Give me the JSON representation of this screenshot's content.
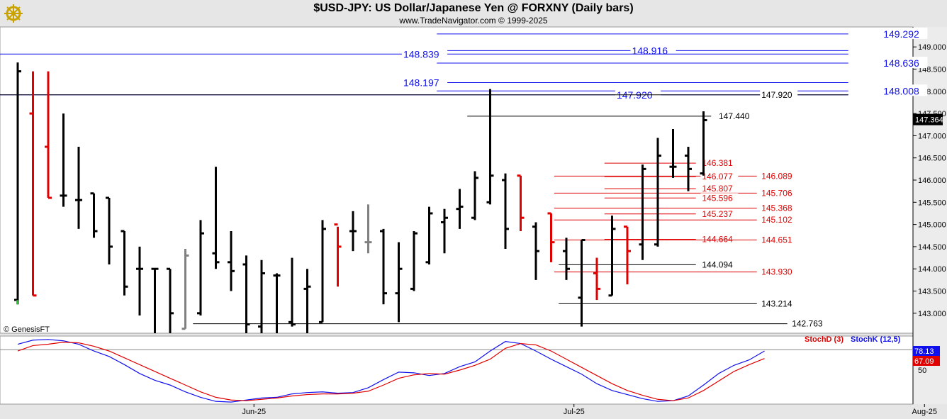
{
  "header": {
    "title": "$USD-JPY:  US Dollar/Japanese Yen @ FORXNY  (Daily bars)",
    "copyright": "www.TradeNavigator.com © 1999-2025",
    "logo_icon": "gold-ship-wheel-logo-icon",
    "watermark": "© GenesisFT"
  },
  "chart_data": [
    {
      "type": "ohlc",
      "title": "$USD-JPY:  US Dollar/Japanese Yen @ FORXNY  (Daily bars)",
      "ylim": [
        142.55,
        149.45
      ],
      "y_ticks": [
        "149.000",
        "148.500",
        "148.000",
        "147.500",
        "147.000",
        "146.500",
        "146.000",
        "145.500",
        "145.000",
        "144.500",
        "144.000",
        "143.500",
        "143.000"
      ],
      "x_labels": [
        {
          "label": "Jun-25",
          "bar": 15.5
        },
        {
          "label": "Jul-25",
          "bar": 36.5
        },
        {
          "label": "Aug-25",
          "bar": 59.5
        }
      ],
      "last_price_label": "147.364",
      "colors": {
        "up_bar": "#000000",
        "down_bar": "#e00000",
        "neutral_bar": "#808080",
        "fib_blue": "#1010ee",
        "red_level": "#e00000"
      },
      "bars": [
        {
          "o": 143.3,
          "h": 148.65,
          "l": 143.2,
          "c": 148.45,
          "color": "black",
          "up": true
        },
        {
          "o": 147.5,
          "h": 148.45,
          "l": 143.4,
          "c": 143.4,
          "color": "red"
        },
        {
          "o": 146.75,
          "h": 148.45,
          "l": 145.6,
          "c": 145.6,
          "color": "red"
        },
        {
          "o": 145.65,
          "h": 147.5,
          "l": 145.4,
          "c": 145.65,
          "color": "black"
        },
        {
          "o": 145.55,
          "h": 146.75,
          "l": 144.9,
          "c": 145.55,
          "color": "black"
        },
        {
          "o": 145.7,
          "h": 145.7,
          "l": 144.7,
          "c": 144.85,
          "color": "black"
        },
        {
          "o": 145.6,
          "h": 145.6,
          "l": 144.1,
          "c": 144.5,
          "color": "black"
        },
        {
          "o": 144.85,
          "h": 144.85,
          "l": 143.4,
          "c": 143.6,
          "color": "black"
        },
        {
          "o": 144.0,
          "h": 144.5,
          "l": 142.95,
          "c": 144.0,
          "color": "black"
        },
        {
          "o": 144.0,
          "h": 144.0,
          "l": 142.55,
          "c": 144.0,
          "color": "black"
        },
        {
          "o": 144.0,
          "h": 144.0,
          "l": 142.55,
          "c": 143.0,
          "color": "black"
        },
        {
          "o": 142.65,
          "h": 144.45,
          "l": 142.65,
          "c": 144.3,
          "color": "gray"
        },
        {
          "o": 143.0,
          "h": 145.1,
          "l": 142.95,
          "c": 144.8,
          "color": "black"
        },
        {
          "o": 144.35,
          "h": 146.3,
          "l": 144.0,
          "c": 144.15,
          "color": "black"
        },
        {
          "o": 144.15,
          "h": 144.85,
          "l": 143.5,
          "c": 143.95,
          "color": "black"
        },
        {
          "o": 144.1,
          "h": 144.3,
          "l": 142.55,
          "c": 142.75,
          "color": "black"
        },
        {
          "o": 142.7,
          "h": 144.2,
          "l": 142.55,
          "c": 143.9,
          "color": "black"
        },
        {
          "o": 143.85,
          "h": 143.9,
          "l": 142.55,
          "c": 143.85,
          "color": "black"
        },
        {
          "o": 142.8,
          "h": 144.25,
          "l": 142.7,
          "c": 142.75,
          "color": "black"
        },
        {
          "o": 143.55,
          "h": 144.0,
          "l": 142.55,
          "c": 143.6,
          "color": "black"
        },
        {
          "o": 142.8,
          "h": 145.1,
          "l": 142.8,
          "c": 144.9,
          "color": "black"
        },
        {
          "o": 145.0,
          "h": 144.95,
          "l": 143.6,
          "c": 144.5,
          "color": "red"
        },
        {
          "o": 144.85,
          "h": 145.3,
          "l": 144.4,
          "c": 144.85,
          "color": "black"
        },
        {
          "o": 144.6,
          "h": 145.45,
          "l": 144.35,
          "c": 144.6,
          "color": "gray"
        },
        {
          "o": 144.85,
          "h": 144.9,
          "l": 143.2,
          "c": 143.45,
          "color": "black"
        },
        {
          "o": 143.45,
          "h": 144.6,
          "l": 142.8,
          "c": 144.0,
          "color": "black"
        },
        {
          "o": 143.55,
          "h": 144.85,
          "l": 143.5,
          "c": 144.8,
          "color": "black"
        },
        {
          "o": 144.15,
          "h": 145.4,
          "l": 144.1,
          "c": 145.25,
          "color": "black"
        },
        {
          "o": 145.05,
          "h": 145.35,
          "l": 144.35,
          "c": 145.15,
          "color": "black"
        },
        {
          "o": 145.35,
          "h": 145.8,
          "l": 144.9,
          "c": 145.4,
          "color": "black"
        },
        {
          "o": 145.15,
          "h": 146.2,
          "l": 145.1,
          "c": 146.05,
          "color": "black"
        },
        {
          "o": 145.5,
          "h": 148.05,
          "l": 145.45,
          "c": 146.1,
          "color": "black"
        },
        {
          "o": 146.0,
          "h": 146.15,
          "l": 144.45,
          "c": 144.9,
          "color": "black"
        },
        {
          "o": 146.1,
          "h": 146.1,
          "l": 144.85,
          "c": 145.15,
          "color": "red"
        },
        {
          "o": 144.95,
          "h": 145.05,
          "l": 143.75,
          "c": 144.4,
          "color": "black"
        },
        {
          "o": 145.25,
          "h": 145.25,
          "l": 144.15,
          "c": 144.6,
          "color": "red"
        },
        {
          "o": 144.4,
          "h": 144.7,
          "l": 143.75,
          "c": 144.0,
          "color": "black"
        },
        {
          "o": 143.35,
          "h": 144.65,
          "l": 142.7,
          "c": 144.65,
          "color": "black"
        },
        {
          "o": 143.9,
          "h": 144.25,
          "l": 143.3,
          "c": 143.55,
          "color": "red"
        },
        {
          "o": 143.4,
          "h": 145.2,
          "l": 143.4,
          "c": 144.9,
          "color": "black"
        },
        {
          "o": 144.95,
          "h": 144.95,
          "l": 143.65,
          "c": 144.4,
          "color": "red"
        },
        {
          "o": 144.55,
          "h": 146.35,
          "l": 144.2,
          "c": 146.25,
          "color": "black"
        },
        {
          "o": 144.55,
          "h": 146.95,
          "l": 144.5,
          "c": 146.55,
          "color": "black"
        },
        {
          "o": 146.3,
          "h": 147.15,
          "l": 146.05,
          "c": 146.3,
          "color": "black"
        },
        {
          "o": 146.55,
          "h": 146.75,
          "l": 145.75,
          "c": 146.25,
          "color": "black"
        },
        {
          "o": 146.15,
          "h": 147.55,
          "l": 146.1,
          "c": 147.35,
          "color": "black"
        }
      ],
      "levels": [
        {
          "label": "149.292",
          "value": 149.292,
          "color": "#1010ee",
          "from_bar": 27.5,
          "to_bar": 54.5,
          "label_bar": 56.8,
          "big": true
        },
        {
          "label": "148.916",
          "value": 148.916,
          "color": "#1010ee",
          "from_bar": 27.5,
          "to_bar": 54.5,
          "label_bar": 40.3,
          "big": true
        },
        {
          "label": "148.839",
          "value": 148.839,
          "color": "#1010ee",
          "from_bar": -1.2,
          "to_bar": 54.5,
          "label_bar": 25.3,
          "big": true
        },
        {
          "label": "148.636",
          "value": 148.636,
          "color": "#1010ee",
          "from_bar": 27.5,
          "to_bar": 54.5,
          "label_bar": 56.8,
          "big": true
        },
        {
          "label": "148.197",
          "value": 148.197,
          "color": "#1010ee",
          "from_bar": 27.5,
          "to_bar": 54.5,
          "label_bar": 25.3,
          "big": true
        },
        {
          "label": "148.008",
          "value": 148.008,
          "color": "#1010ee",
          "from_bar": 27.5,
          "to_bar": 54.5,
          "label_bar": 56.8,
          "big": true
        },
        {
          "label": "147.920",
          "value": 147.92,
          "color": "#1010ee",
          "from_bar": -1.2,
          "to_bar": 54.5,
          "label_bar": 39.3,
          "big": true
        },
        {
          "label": "147.920",
          "value": 147.92,
          "color": "#000000",
          "from_bar": -1.2,
          "to_bar": 54.5,
          "label_bar": 48.8,
          "big": false
        },
        {
          "label": "147.440",
          "value": 147.44,
          "color": "#000000",
          "from_bar": 29.5,
          "to_bar": 45.5,
          "label_bar": 46.0,
          "big": false
        },
        {
          "label": "146.381",
          "value": 146.381,
          "color": "#e00000",
          "from_bar": 38.5,
          "to_bar": 44.5,
          "label_bar": 44.9,
          "big": false
        },
        {
          "label": "146.089",
          "value": 146.089,
          "color": "#e00000",
          "from_bar": 35.2,
          "to_bar": 48.5,
          "label_bar": 48.8,
          "big": false
        },
        {
          "label": "146.077",
          "value": 146.077,
          "color": "#e00000",
          "from_bar": 38.5,
          "to_bar": 44.5,
          "label_bar": 44.9,
          "big": false
        },
        {
          "label": "145.807",
          "value": 145.807,
          "color": "#e00000",
          "from_bar": 38.5,
          "to_bar": 44.5,
          "label_bar": 44.9,
          "big": false
        },
        {
          "label": "145.706",
          "value": 145.706,
          "color": "#e00000",
          "from_bar": 35.2,
          "to_bar": 48.5,
          "label_bar": 48.8,
          "big": false
        },
        {
          "label": "145.596",
          "value": 145.596,
          "color": "#e00000",
          "from_bar": 38.5,
          "to_bar": 44.5,
          "label_bar": 44.9,
          "big": false
        },
        {
          "label": "145.368",
          "value": 145.368,
          "color": "#e00000",
          "from_bar": 35.2,
          "to_bar": 48.5,
          "label_bar": 48.8,
          "big": false
        },
        {
          "label": "145.237",
          "value": 145.237,
          "color": "#e00000",
          "from_bar": 38.5,
          "to_bar": 44.5,
          "label_bar": 44.9,
          "big": false
        },
        {
          "label": "145.102",
          "value": 145.102,
          "color": "#e00000",
          "from_bar": 35.2,
          "to_bar": 48.5,
          "label_bar": 48.8,
          "big": false
        },
        {
          "label": "144.664",
          "value": 144.664,
          "color": "#e00000",
          "from_bar": 38.5,
          "to_bar": 44.5,
          "label_bar": 44.9,
          "big": false
        },
        {
          "label": "144.651",
          "value": 144.651,
          "color": "#e00000",
          "from_bar": 35.2,
          "to_bar": 48.5,
          "label_bar": 48.8,
          "big": false
        },
        {
          "label": "144.094",
          "value": 144.094,
          "color": "#000000",
          "from_bar": 35.5,
          "to_bar": 44.5,
          "label_bar": 44.9,
          "big": false
        },
        {
          "label": "143.930",
          "value": 143.93,
          "color": "#e00000",
          "from_bar": 35.2,
          "to_bar": 48.5,
          "label_bar": 48.8,
          "big": false
        },
        {
          "label": "143.214",
          "value": 143.214,
          "color": "#000000",
          "from_bar": 35.5,
          "to_bar": 48.5,
          "label_bar": 48.8,
          "big": false
        },
        {
          "label": "142.763",
          "value": 142.763,
          "color": "#000000",
          "from_bar": 11.5,
          "to_bar": 50.5,
          "label_bar": 50.8,
          "big": false
        }
      ]
    },
    {
      "type": "line",
      "ylim": [
        0,
        100
      ],
      "y_ticks": [
        "50"
      ],
      "reference_line": 80,
      "last_values": [
        {
          "label": "78.13",
          "color": "#1010ee"
        },
        {
          "label": "67.09",
          "color": "#e00000"
        }
      ],
      "series": [
        {
          "name": "StochK (12,5)",
          "color": "#1010ee",
          "values": [
            88,
            94,
            95,
            93,
            88,
            78,
            70,
            58,
            45,
            35,
            28,
            18,
            10,
            4,
            3,
            6,
            9,
            10,
            15,
            17,
            18,
            16,
            17,
            24,
            36,
            47,
            46,
            42,
            45,
            55,
            62,
            78,
            92,
            89,
            78,
            66,
            55,
            44,
            30,
            20,
            14,
            8,
            4,
            5,
            12,
            28,
            45,
            57,
            65,
            78
          ]
        },
        {
          "name": "StochD (3)",
          "color": "#e00000",
          "values": [
            78,
            86,
            88,
            91,
            90,
            85,
            78,
            68,
            58,
            48,
            38,
            28,
            18,
            10,
            6,
            5,
            7,
            9,
            12,
            14,
            15,
            15,
            16,
            19,
            28,
            38,
            43,
            45,
            44,
            50,
            57,
            66,
            82,
            89,
            87,
            78,
            66,
            54,
            42,
            30,
            20,
            13,
            7,
            5,
            9,
            20,
            34,
            48,
            58,
            67
          ]
        }
      ]
    }
  ],
  "watermark_text": "© GenesisFT",
  "y_axis_last_price": "147.364",
  "x_axis_labels": [
    "Jun-25",
    "Jul-25",
    "Aug-25"
  ],
  "legend": {
    "stoch_d": "StochD (3)",
    "stoch_k": "StochK (12,5)"
  },
  "last_vals": {
    "k": "78.13",
    "d": "67.09"
  }
}
